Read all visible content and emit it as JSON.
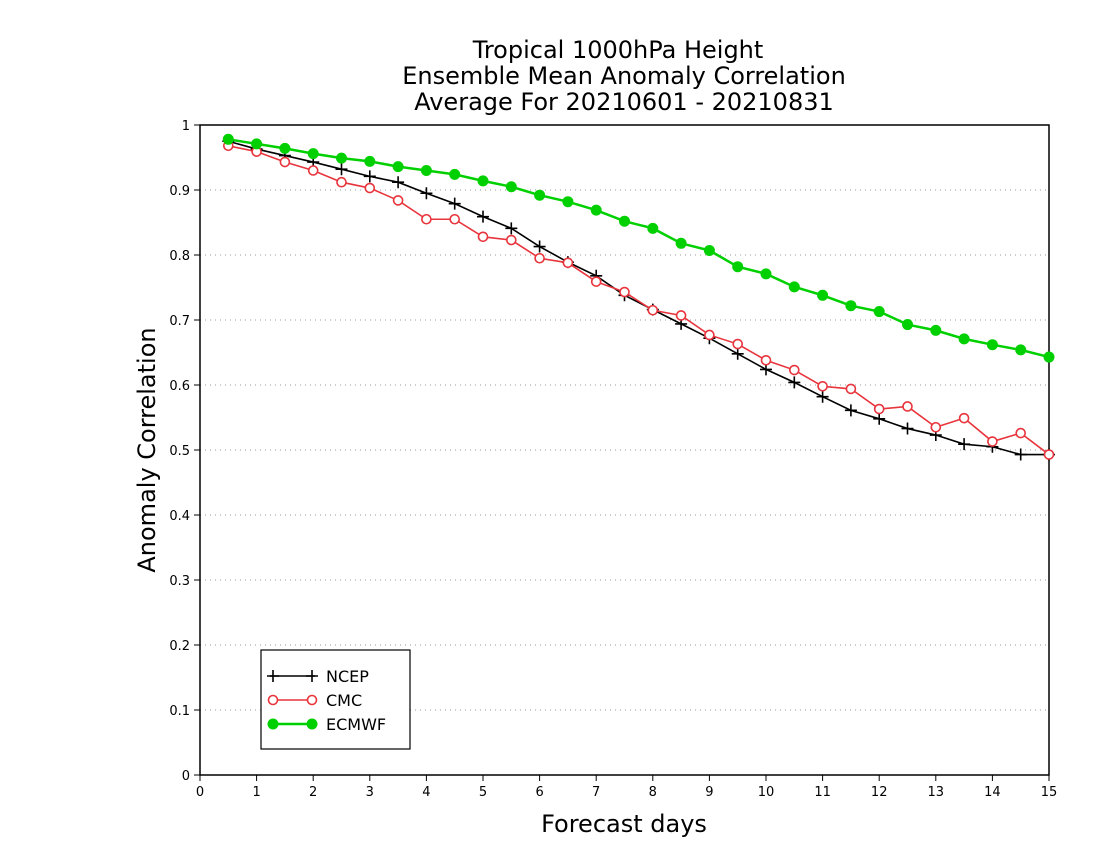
{
  "chart_data": {
    "type": "line",
    "title": [
      "Tropical 1000hPa Height",
      "Ensemble Mean Anomaly Correlation",
      "Average For 20210601 - 20210831"
    ],
    "xlabel": "Forecast days",
    "ylabel": "Anomaly Correlation",
    "xlim": [
      0,
      15
    ],
    "ylim": [
      0,
      1
    ],
    "xticks": [
      0,
      1,
      2,
      3,
      4,
      5,
      6,
      7,
      8,
      9,
      10,
      11,
      12,
      13,
      14,
      15
    ],
    "xtick_labels": [
      "0",
      "1",
      "2",
      "3",
      "4",
      "5",
      "6",
      "7",
      "8",
      "9",
      "10",
      "11",
      "12",
      "13",
      "14",
      "15"
    ],
    "yticks": [
      0,
      0.1,
      0.2,
      0.3,
      0.4,
      0.5,
      0.6,
      0.7,
      0.8,
      0.9,
      1
    ],
    "ytick_labels": [
      "0",
      "0.1",
      "0.2",
      "0.3",
      "0.4",
      "0.5",
      "0.6",
      "0.7",
      "0.8",
      "0.9",
      "1"
    ],
    "grid": "horizontal dotted",
    "legend_position": "bottom-left",
    "x": [
      0.5,
      1,
      1.5,
      2,
      2.5,
      3,
      3.5,
      4,
      4.5,
      5,
      5.5,
      6,
      6.5,
      7,
      7.5,
      8,
      8.5,
      9,
      9.5,
      10,
      10.5,
      11,
      11.5,
      12,
      12.5,
      13,
      13.5,
      14,
      14.5,
      15
    ],
    "series": [
      {
        "name": "NCEP",
        "color": "#000000",
        "marker": "plus",
        "values": [
          0.975,
          0.963,
          0.953,
          0.943,
          0.932,
          0.921,
          0.912,
          0.895,
          0.879,
          0.859,
          0.841,
          0.813,
          0.789,
          0.768,
          0.738,
          0.716,
          0.694,
          0.672,
          0.648,
          0.624,
          0.604,
          0.582,
          0.561,
          0.548,
          0.533,
          0.523,
          0.509,
          0.505,
          0.493,
          0.493
        ]
      },
      {
        "name": "CMC",
        "color": "#e8343c",
        "marker": "open-circle",
        "values": [
          0.968,
          0.959,
          0.943,
          0.93,
          0.912,
          0.903,
          0.884,
          0.855,
          0.855,
          0.828,
          0.823,
          0.795,
          0.788,
          0.759,
          0.743,
          0.715,
          0.707,
          0.677,
          0.663,
          0.638,
          0.623,
          0.598,
          0.594,
          0.563,
          0.567,
          0.535,
          0.549,
          0.513,
          0.526,
          0.493
        ]
      },
      {
        "name": "ECMWF",
        "color": "#00d000",
        "marker": "filled-circle",
        "values": [
          0.978,
          0.971,
          0.964,
          0.956,
          0.949,
          0.944,
          0.936,
          0.93,
          0.924,
          0.914,
          0.905,
          0.892,
          0.882,
          0.869,
          0.852,
          0.841,
          0.818,
          0.807,
          0.782,
          0.771,
          0.751,
          0.738,
          0.722,
          0.713,
          0.693,
          0.684,
          0.671,
          0.662,
          0.654,
          0.643
        ]
      }
    ]
  }
}
